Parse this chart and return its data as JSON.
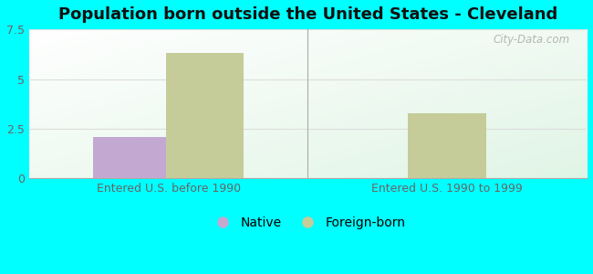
{
  "title": "Population born outside the United States - Cleveland",
  "background_color": "#00FFFF",
  "groups": [
    "Entered U.S. before 1990",
    "Entered U.S. 1990 to 1999"
  ],
  "native_values": [
    2.1,
    0.0
  ],
  "foreign_values": [
    6.3,
    3.3
  ],
  "native_color": "#C3A8D1",
  "foreign_color": "#C5CC99",
  "ylim": [
    0,
    7.5
  ],
  "yticks": [
    0,
    2.5,
    5,
    7.5
  ],
  "bar_width": 0.28,
  "title_fontsize": 13,
  "tick_fontsize": 9,
  "legend_fontsize": 10,
  "watermark": "City-Data.com",
  "grid_color": "#dddddd",
  "tick_color": "#666666",
  "spine_color": "#aaaaaa"
}
